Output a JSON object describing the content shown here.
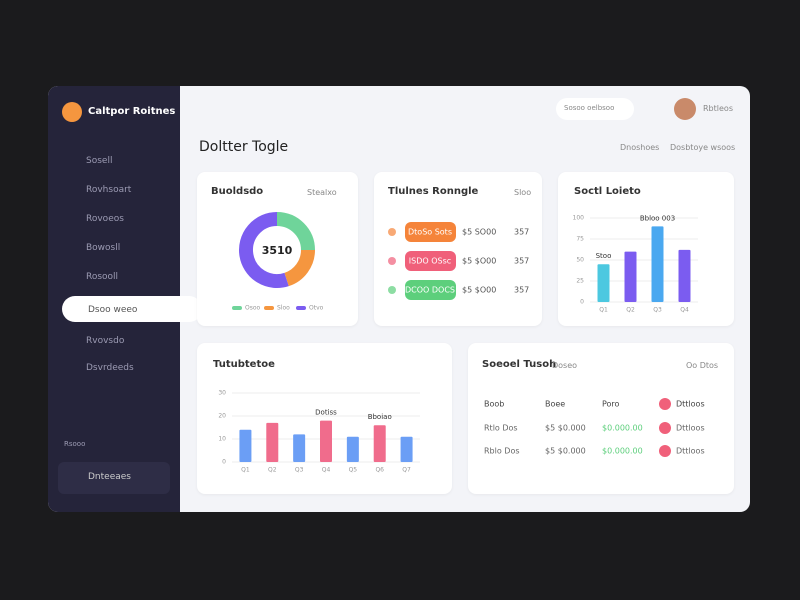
{
  "brand": "Caltpor Roitnes",
  "nav": [
    "Sosell",
    "Rovhsoart",
    "Rovoeos",
    "Bowosll",
    "Rosooll",
    "Dsoo weeo",
    "Rvovsdo",
    "Dsvrdeeds"
  ],
  "section_label": "Rsooo",
  "footer_item": "Dnteeaes",
  "search": "Sosoo oelbsoo",
  "user": "Rbtleos",
  "page_title": "Doltter Togle",
  "page_links": [
    "Dnoshoes",
    "Dosbtoye wsoos"
  ],
  "donut": {
    "type": "pie",
    "title": "Buoldsdo",
    "tag": "Stealxo",
    "center_label": "3510",
    "categories": [
      "Osoo",
      "Sloo",
      "Otvo"
    ],
    "values": [
      25,
      20,
      55
    ],
    "colors": [
      "#6fd49a",
      "#f5963f",
      "#7b5cf0"
    ]
  },
  "ranking": {
    "title": "Tlulnes Ronngle",
    "tag": "Sloo",
    "rows": [
      {
        "pill": "DtoSo Sots",
        "amount": "$5 SO00",
        "count": "357",
        "color": "#f5843a"
      },
      {
        "pill": "ISDO OSsc",
        "amount": "$5 $O00",
        "count": "357",
        "color": "#f0607a"
      },
      {
        "pill": "DCOO DOCS",
        "amount": "$5 $O00",
        "count": "357",
        "color": "#5dcf7c"
      }
    ]
  },
  "chart_small": {
    "type": "bar",
    "title": "Soctl Loieto",
    "categories": [
      "Q1",
      "Q2",
      "Q3",
      "Q4"
    ],
    "values": [
      45,
      60,
      90,
      62
    ],
    "colors": [
      "#4cc8e0",
      "#7b5cf0",
      "#4aa8f0",
      "#7b5cf0"
    ],
    "ylim": [
      0,
      100
    ],
    "yticks": [
      0,
      25,
      50,
      75,
      100
    ],
    "annotations": [
      "Stoo",
      "Bbloo 003"
    ]
  },
  "chart_wide": {
    "type": "bar",
    "title": "Tutubtetoe",
    "categories": [
      "Q1",
      "Q2",
      "Q3",
      "Q4",
      "Q5",
      "Q6",
      "Q7"
    ],
    "values": [
      14,
      17,
      12,
      18,
      11,
      16,
      11
    ],
    "colors": [
      "#6b9ef5",
      "#f06c8c",
      "#6b9ef5",
      "#f06c8c",
      "#6b9ef5",
      "#f06c8c",
      "#6b9ef5"
    ],
    "ylim": [
      0,
      30
    ],
    "yticks": [
      0,
      10,
      20,
      30
    ],
    "annotations": [
      "Dotiss",
      "Bboiao"
    ]
  },
  "table": {
    "title": "Soeoel Tusoh",
    "tag": "Doseo",
    "filter": "Oo Dtos",
    "header": [
      "Boob",
      "Boee",
      "Poro",
      "Dttloos"
    ],
    "rows": [
      [
        "Rtlo Dos",
        "$5 $0.000",
        "$0.000.00",
        "Dttloos"
      ],
      [
        "Rblo Dos",
        "$5 $0.000",
        "$0.000.00",
        "Dttloos"
      ]
    ]
  }
}
